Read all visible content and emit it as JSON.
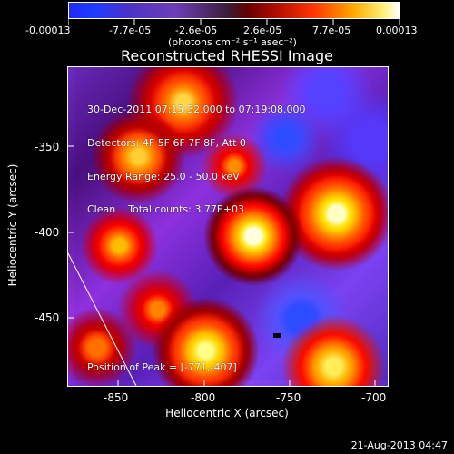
{
  "colorbar": {
    "tick_labels": [
      "-0.00013",
      "-7.7e-05",
      "-2.6e-05",
      "2.6e-05",
      "7.7e-05",
      "0.00013"
    ],
    "units_label": "(photons cm⁻² s⁻¹ asec⁻²)"
  },
  "plot": {
    "title": "Reconstructed RHESSI Image",
    "xlabel": "Heliocentric X (arcsec)",
    "ylabel": "Heliocentric Y (arcsec)",
    "x_ticks": [
      "-850",
      "-800",
      "-750",
      "-700"
    ],
    "y_ticks": [
      "-350",
      "-400",
      "-450"
    ],
    "info_lines": [
      "30-Dec-2011 07:15:52.000 to 07:19:08.000",
      "Detectors: 4F 5F 6F 7F 8F, Att 0",
      "Energy Range: 25.0 - 50.0 keV",
      "Clean    Total counts: 3.77E+03"
    ],
    "peak_label": "Position of Peak = [-771,-407]"
  },
  "footer": {
    "timestamp": "21-Aug-2013 04:47"
  },
  "chart_data": {
    "type": "heatmap",
    "title": "Reconstructed RHESSI Image",
    "xlabel": "Heliocentric X (arcsec)",
    "ylabel": "Heliocentric Y (arcsec)",
    "xlim": [
      -877,
      -689
    ],
    "ylim": [
      -495,
      -308
    ],
    "x_ticks": [
      -850,
      -800,
      -750,
      -700
    ],
    "y_ticks": [
      -350,
      -400,
      -450
    ],
    "colorbar_range": [
      -0.00013,
      0.00013
    ],
    "colorbar_ticks": [
      "-0.00013",
      "-7.7e-05",
      "-2.6e-05",
      "2.6e-05",
      "7.7e-05",
      "0.00013"
    ],
    "colorbar_label": "(photons cm⁻² s⁻¹ asec⁻²)",
    "annotations": [
      "30-Dec-2011 07:15:52.000 to 07:19:08.000",
      "Detectors: 4F 5F 6F 7F 8F, Att 0",
      "Energy Range: 25.0 - 50.0 keV",
      "Clean    Total counts: 3.77E+03",
      "Position of Peak = [-771,-407]"
    ],
    "peak": {
      "x": -771,
      "y": -407
    },
    "limb_line": {
      "x": [
        -877,
        -845
      ],
      "y": [
        -413,
        -495
      ]
    },
    "grid": false
  }
}
